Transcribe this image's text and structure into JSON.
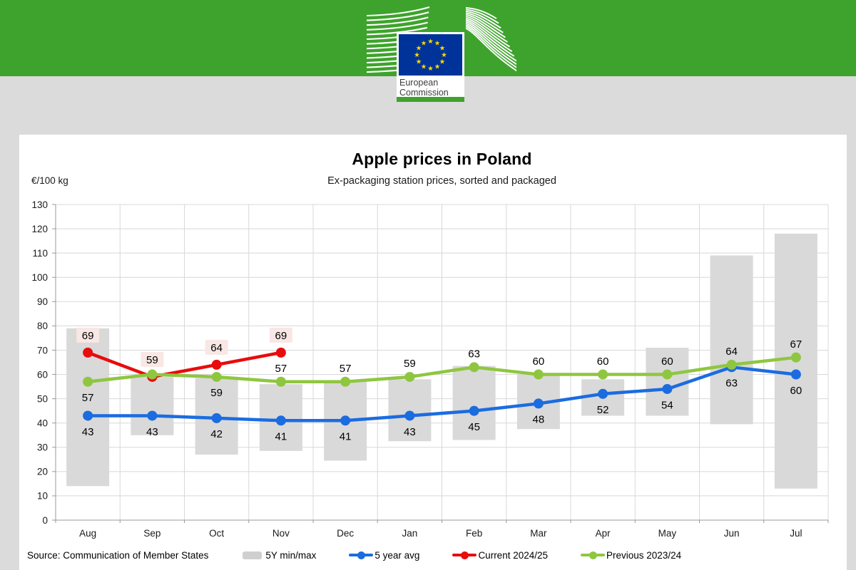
{
  "header": {
    "brand_green": "#3EA32C",
    "flag_blue": "#003399",
    "star_yellow": "#FFD900",
    "logo_line1": "European",
    "logo_line2": "Commission"
  },
  "chart": {
    "title": "Apple prices in Poland",
    "subtitle": "Ex-packaging station prices, sorted and packaged",
    "y_axis_unit": "€/100 kg",
    "source": "Source: Communication of Member States"
  },
  "chart_data": {
    "type": "line",
    "title": "Apple prices in Poland",
    "subtitle": "Ex-packaging station prices, sorted and packaged",
    "ylabel": "€/100 kg",
    "ylim": [
      0,
      130
    ],
    "ytick_step": 10,
    "grid": true,
    "grid_color": "#D8D8D8",
    "axis_color": "#999999",
    "legend_position": "bottom",
    "categories": [
      "Aug",
      "Sep",
      "Oct",
      "Nov",
      "Dec",
      "Jan",
      "Feb",
      "Mar",
      "Apr",
      "May",
      "Jun",
      "Jul"
    ],
    "series": [
      {
        "name": "5Y min/max",
        "type": "range",
        "color": "#D9D9D9",
        "min": [
          14,
          35,
          27,
          28.5,
          24.5,
          32.5,
          33,
          37.5,
          43,
          43,
          39.5,
          13
        ],
        "max": [
          79,
          59,
          58.5,
          56,
          57,
          58,
          63.5,
          60,
          58,
          71,
          109,
          118
        ]
      },
      {
        "name": "5 year avg",
        "type": "line",
        "color": "#1B6CE0",
        "values": [
          43,
          43,
          42,
          41,
          41,
          43,
          45,
          48,
          52,
          54,
          63,
          60
        ],
        "labels": [
          "43",
          "43",
          "42",
          "41",
          "41",
          "43",
          "45",
          "48",
          "52",
          "54",
          "63",
          "60"
        ],
        "label_pos": [
          "below",
          "below",
          "below",
          "below",
          "below",
          "below",
          "below",
          "below",
          "below",
          "below",
          "below",
          "below"
        ]
      },
      {
        "name": "Current 2024/25",
        "type": "line",
        "color": "#E80C0C",
        "label_bg": "#F8E7E5",
        "values": [
          69,
          59,
          64,
          69,
          null,
          null,
          null,
          null,
          null,
          null,
          null,
          null
        ],
        "labels": [
          "69",
          "59",
          "64",
          "69",
          "",
          "",
          "",
          "",
          "",
          "",
          "",
          ""
        ],
        "label_pos": [
          "above",
          "above",
          "above",
          "above",
          "",
          "",
          "",
          "",
          "",
          "",
          "",
          ""
        ]
      },
      {
        "name": "Previous 2023/24",
        "type": "line",
        "color": "#8FC640",
        "values": [
          57,
          60,
          59,
          57,
          57,
          59,
          63,
          60,
          60,
          60,
          64,
          67
        ],
        "labels": [
          "57",
          "",
          "59",
          "57",
          "57",
          "59",
          "63",
          "60",
          "60",
          "60",
          "64",
          "67"
        ],
        "label_pos": [
          "below",
          "",
          "below",
          "above",
          "above",
          "above",
          "above",
          "above",
          "above",
          "above",
          "above",
          "above"
        ]
      }
    ]
  }
}
